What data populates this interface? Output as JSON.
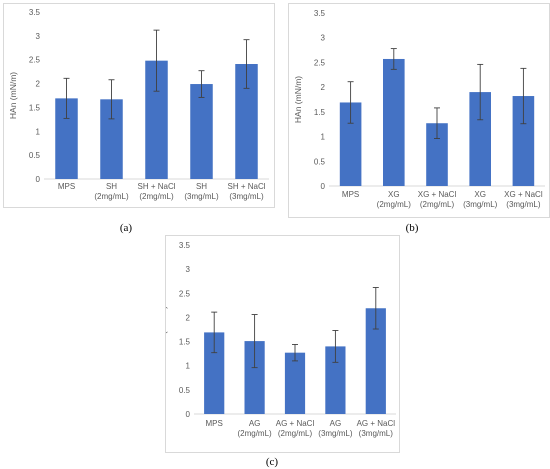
{
  "colors": {
    "bar": "#4472c4",
    "axis": "#d9d9d9",
    "text": "#595959",
    "error": "#404040"
  },
  "chart_data": [
    {
      "type": "bar",
      "panel_label": "(a)",
      "ylabel": "HAn (mN/m)",
      "ylim": [
        0,
        3.5
      ],
      "yticks": [
        "0",
        "0.5",
        "1",
        "1.5",
        "2",
        "2.5",
        "3",
        "3.5"
      ],
      "categories": [
        [
          "MPS"
        ],
        [
          "SH",
          "(2mg/mL)"
        ],
        [
          "SH + NaCl",
          "(2mg/mL)"
        ],
        [
          "SH",
          "(3mg/mL)"
        ],
        [
          "SH + NaCl",
          "(3mg/mL)"
        ]
      ],
      "values": [
        1.69,
        1.67,
        2.48,
        1.99,
        2.41
      ],
      "errors": [
        0.42,
        0.41,
        0.64,
        0.28,
        0.51
      ]
    },
    {
      "type": "bar",
      "panel_label": "(b)",
      "ylabel": "HAn (mN/m)",
      "ylim": [
        0,
        3.5
      ],
      "yticks": [
        "0",
        "0.5",
        "1",
        "1.5",
        "2",
        "2.5",
        "3",
        "3.5"
      ],
      "categories": [
        [
          "MPS"
        ],
        [
          "XG",
          "(2mg/mL)"
        ],
        [
          "XG + NaCl",
          "(2mg/mL)"
        ],
        [
          "XG",
          "(3mg/mL)"
        ],
        [
          "XG + NaCl",
          "(3mg/mL)"
        ]
      ],
      "values": [
        1.69,
        2.57,
        1.27,
        1.9,
        1.82
      ],
      "errors": [
        0.42,
        0.21,
        0.31,
        0.56,
        0.56
      ]
    },
    {
      "type": "bar",
      "panel_label": "(c)",
      "ylabel": "HAn (mN/m)",
      "ylim": [
        0,
        3.5
      ],
      "yticks": [
        "0",
        "0.5",
        "1",
        "1.5",
        "2",
        "2.5",
        "3",
        "3.5"
      ],
      "categories": [
        [
          "MPS"
        ],
        [
          "AG",
          "(2mg/mL)"
        ],
        [
          "AG + NaCl",
          "(2mg/mL)"
        ],
        [
          "AG",
          "(3mg/mL)"
        ],
        [
          "AG + NaCl",
          "(3mg/mL)"
        ]
      ],
      "values": [
        1.69,
        1.51,
        1.27,
        1.4,
        2.19
      ],
      "errors": [
        0.42,
        0.55,
        0.17,
        0.33,
        0.43
      ]
    }
  ]
}
